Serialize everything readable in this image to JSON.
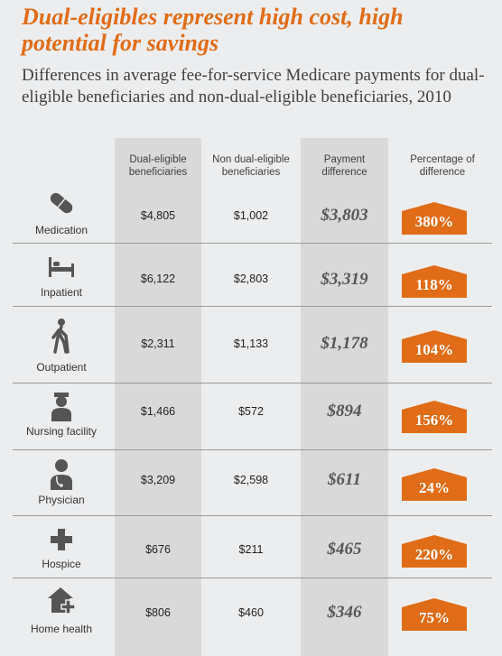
{
  "title": "Dual-eligibles represent high cost, high potential for savings",
  "subtitle": "Differences in average fee-for-service Medicare payments for dual-eligible beneficiaries and non-dual-eligible beneficiaries, 2010",
  "columns": {
    "dual": "Dual-eligible beneficiaries",
    "non_dual": "Non dual-eligible beneficiaries",
    "payment_diff": "Payment difference",
    "pct_diff": "Percentage of difference"
  },
  "accent_color": "#e06c17",
  "rows": [
    {
      "label": "Medication",
      "icon": "pill-icon",
      "dual": "$4,805",
      "non_dual": "$1,002",
      "diff": "$3,803",
      "pct": "380%"
    },
    {
      "label": "Inpatient",
      "icon": "hospital-bed-icon",
      "dual": "$6,122",
      "non_dual": "$2,803",
      "diff": "$3,319",
      "pct": "118%"
    },
    {
      "label": "Outpatient",
      "icon": "walking-person-icon",
      "dual": "$2,311",
      "non_dual": "$1,133",
      "diff": "$1,178",
      "pct": "104%"
    },
    {
      "label": "Nursing facility",
      "icon": "nurse-icon",
      "dual": "$1,466",
      "non_dual": "$572",
      "diff": "$894",
      "pct": "156%"
    },
    {
      "label": "Physician",
      "icon": "doctor-icon",
      "dual": "$3,209",
      "non_dual": "$2,598",
      "diff": "$611",
      "pct": "24%"
    },
    {
      "label": "Hospice",
      "icon": "medical-cross-icon",
      "dual": "$676",
      "non_dual": "$211",
      "diff": "$465",
      "pct": "220%"
    },
    {
      "label": "Home health",
      "icon": "home-health-icon",
      "dual": "$806",
      "non_dual": "$460",
      "diff": "$346",
      "pct": "75%"
    }
  ]
}
